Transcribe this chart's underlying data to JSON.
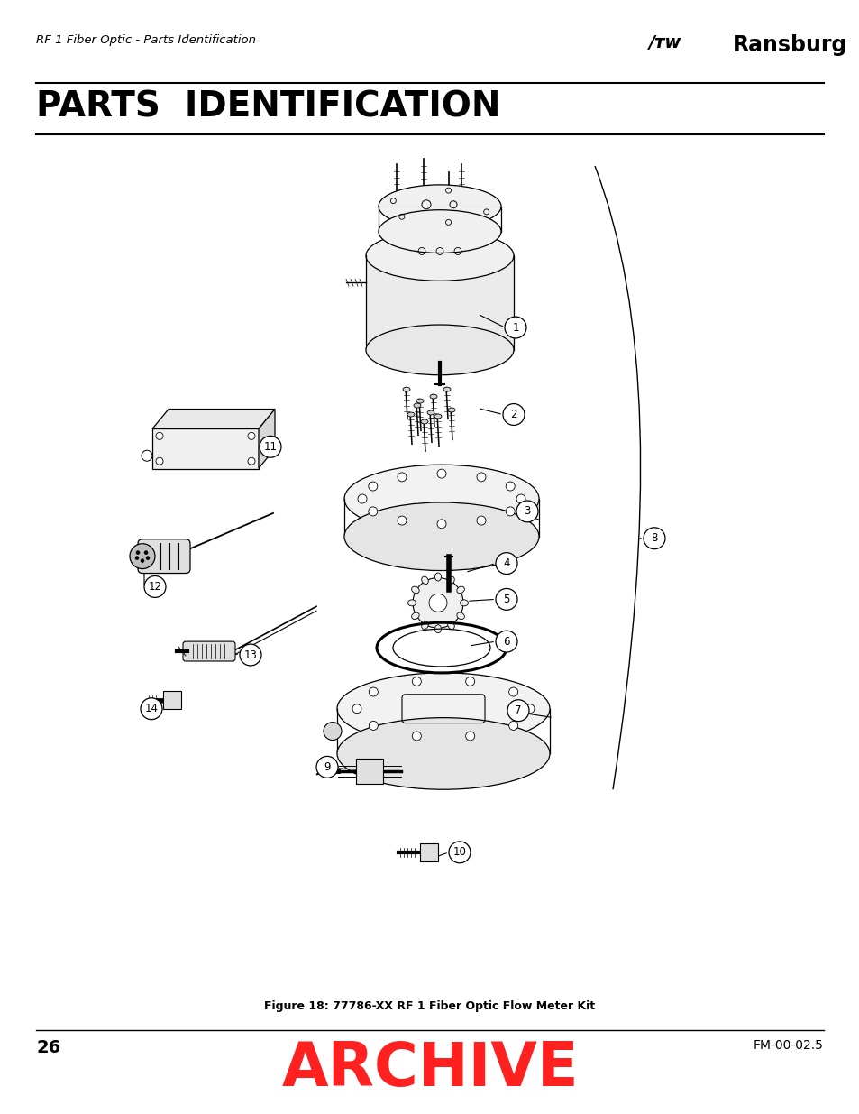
{
  "page_header_left": "RF 1 Fiber Optic - Parts Identification",
  "section_title": "PARTS  IDENTIFICATION",
  "figure_caption": "Figure 18: 77786-XX RF 1 Fiber Optic Flow Meter Kit",
  "archive_text": "ARCHIVE",
  "archive_color": "#FF2020",
  "page_number": "26",
  "doc_number": "FM-00-02.5",
  "bg_color": "#FFFFFF"
}
